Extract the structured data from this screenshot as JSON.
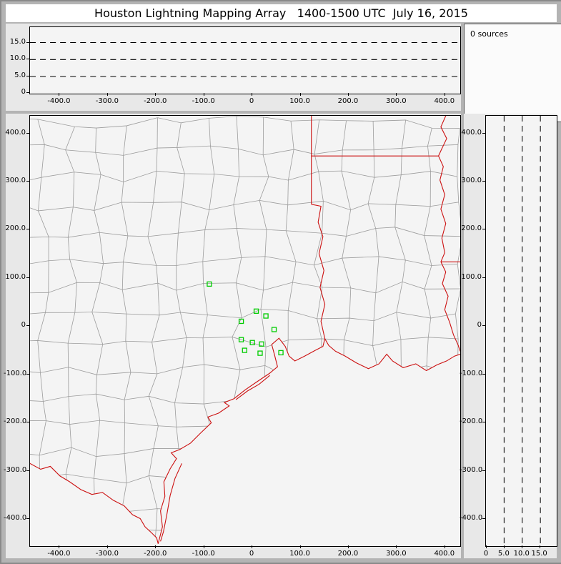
{
  "window": {
    "title": "Houston Lightning Mapping Array   1400-1500 UTC  July 16, 2015"
  },
  "panels": {
    "sources": {
      "label": "0 sources"
    }
  },
  "colors": {
    "state_boundary": "#cc1111",
    "county_line": "#9c9c9c",
    "station": "#00cc00",
    "grid_dash": "#000000",
    "plot_bg": "#f4f4f4",
    "chrome": "#b4b4b4"
  },
  "axes": {
    "ew": {
      "unit": "km",
      "tick_labels": [
        "-400.0",
        "-300.0",
        "-200.0",
        "-100.0",
        "0",
        "100.0",
        "200.0",
        "300.0",
        "400.0"
      ],
      "tick_values": [
        -400,
        -300,
        -200,
        -100,
        0,
        100,
        200,
        300,
        400
      ],
      "range": [
        -460,
        430
      ]
    },
    "ns": {
      "unit": "km",
      "tick_labels": [
        "400.0",
        "300.0",
        "200.0",
        "100.0",
        "0",
        "-100.0",
        "-200.0",
        "-300.0",
        "-400.0"
      ],
      "tick_values": [
        400,
        300,
        200,
        100,
        0,
        -100,
        -200,
        -300,
        -400
      ],
      "range": [
        -455,
        435
      ]
    },
    "alt": {
      "unit": "km",
      "tick_labels": [
        "0",
        "5.0",
        "10.0",
        "15.0"
      ],
      "tick_values": [
        0,
        5,
        10,
        15
      ],
      "gridlines": [
        5,
        10,
        15
      ],
      "range": [
        0,
        19.5
      ]
    }
  },
  "chart_data": [
    {
      "type": "scatter",
      "panel": "altitude-vs-east-west",
      "title": "Altitude (km) vs east-west distance (km)",
      "x_range": [
        -460,
        430
      ],
      "y_range": [
        0,
        19.5
      ],
      "gridlines_y": [
        5,
        10,
        15
      ],
      "points": [],
      "source_count": 0
    },
    {
      "type": "scatter",
      "panel": "map-plan-view",
      "title": "Plan view map, north-south vs east-west distance (km) from Houston LMA center",
      "x_range": [
        -460,
        430
      ],
      "y_range": [
        -455,
        435
      ],
      "points": [],
      "stations_km": [
        [
          -89,
          87
        ],
        [
          8,
          31
        ],
        [
          28,
          21
        ],
        [
          -23,
          10
        ],
        [
          45,
          -7
        ],
        [
          -23,
          -28
        ],
        [
          0,
          -34
        ],
        [
          19,
          -37
        ],
        [
          -16,
          -50
        ],
        [
          16,
          -56
        ],
        [
          59,
          -55
        ]
      ],
      "boundaries_km": {
        "rio_grande": [
          [
            -460,
            -284
          ],
          [
            -438,
            -296
          ],
          [
            -418,
            -290
          ],
          [
            -398,
            -310
          ],
          [
            -378,
            -322
          ],
          [
            -355,
            -338
          ],
          [
            -332,
            -348
          ],
          [
            -310,
            -344
          ],
          [
            -288,
            -360
          ],
          [
            -265,
            -372
          ],
          [
            -248,
            -390
          ],
          [
            -232,
            -398
          ],
          [
            -222,
            -415
          ],
          [
            -208,
            -428
          ],
          [
            -198,
            -438
          ],
          [
            -195,
            -450
          ]
        ],
        "coast": [
          [
            -195,
            -450
          ],
          [
            -186,
            -415
          ],
          [
            -190,
            -382
          ],
          [
            -181,
            -352
          ],
          [
            -183,
            -322
          ],
          [
            -170,
            -295
          ],
          [
            -157,
            -274
          ],
          [
            -168,
            -262
          ],
          [
            -150,
            -255
          ],
          [
            -128,
            -242
          ],
          [
            -108,
            -222
          ],
          [
            -85,
            -200
          ],
          [
            -92,
            -188
          ],
          [
            -70,
            -180
          ],
          [
            -48,
            -165
          ],
          [
            -58,
            -158
          ],
          [
            -38,
            -150
          ],
          [
            -15,
            -132
          ],
          [
            8,
            -116
          ],
          [
            35,
            -98
          ],
          [
            52,
            -84
          ],
          [
            46,
            -60
          ],
          [
            40,
            -38
          ],
          [
            55,
            -25
          ],
          [
            68,
            -42
          ],
          [
            76,
            -62
          ],
          [
            88,
            -72
          ],
          [
            108,
            -62
          ],
          [
            130,
            -50
          ],
          [
            146,
            -42
          ],
          [
            150,
            -26
          ],
          [
            158,
            -40
          ],
          [
            172,
            -52
          ],
          [
            192,
            -62
          ],
          [
            215,
            -76
          ],
          [
            240,
            -88
          ],
          [
            262,
            -78
          ],
          [
            278,
            -58
          ],
          [
            290,
            -72
          ],
          [
            312,
            -86
          ],
          [
            338,
            -78
          ],
          [
            360,
            -92
          ],
          [
            382,
            -80
          ],
          [
            402,
            -72
          ],
          [
            418,
            -62
          ],
          [
            430,
            -58
          ]
        ],
        "padre_island": [
          [
            -146,
            -284
          ],
          [
            -160,
            -315
          ],
          [
            -170,
            -350
          ],
          [
            -177,
            -390
          ],
          [
            -184,
            -425
          ],
          [
            -190,
            -445
          ]
        ],
        "barrier_island": [
          [
            36,
            -102
          ],
          [
            14,
            -120
          ],
          [
            -10,
            -134
          ],
          [
            -34,
            -152
          ]
        ],
        "sabine_river": [
          [
            150,
            -26
          ],
          [
            142,
            10
          ],
          [
            150,
            45
          ],
          [
            140,
            80
          ],
          [
            148,
            115
          ],
          [
            138,
            150
          ],
          [
            146,
            185
          ],
          [
            136,
            215
          ],
          [
            142,
            248
          ],
          [
            122,
            252
          ]
        ],
        "tx_ar_line": [
          [
            122,
            252
          ],
          [
            122,
            435
          ]
        ],
        "ar_la_line": [
          [
            122,
            352
          ],
          [
            385,
            352
          ]
        ],
        "mississippi": [
          [
            400,
            435
          ],
          [
            390,
            412
          ],
          [
            402,
            388
          ],
          [
            391,
            365
          ],
          [
            385,
            352
          ],
          [
            395,
            330
          ],
          [
            388,
            302
          ],
          [
            398,
            272
          ],
          [
            390,
            242
          ],
          [
            400,
            212
          ],
          [
            392,
            182
          ],
          [
            398,
            152
          ],
          [
            390,
            133
          ]
        ],
        "la_ms_line": [
          [
            390,
            133
          ],
          [
            430,
            133
          ]
        ],
        "mississippi_lower": [
          [
            390,
            133
          ],
          [
            400,
            112
          ],
          [
            393,
            88
          ],
          [
            405,
            62
          ],
          [
            398,
            34
          ],
          [
            408,
            8
          ],
          [
            416,
            -18
          ],
          [
            426,
            -40
          ],
          [
            430,
            -52
          ]
        ]
      }
    },
    {
      "type": "scatter",
      "panel": "altitude-vs-north-south",
      "title": "Altitude (km) vs north-south distance (km)",
      "x_range": [
        0,
        19.5
      ],
      "y_range": [
        -455,
        435
      ],
      "gridlines_x": [
        5,
        10,
        15
      ],
      "points": [],
      "source_count": 0
    }
  ]
}
